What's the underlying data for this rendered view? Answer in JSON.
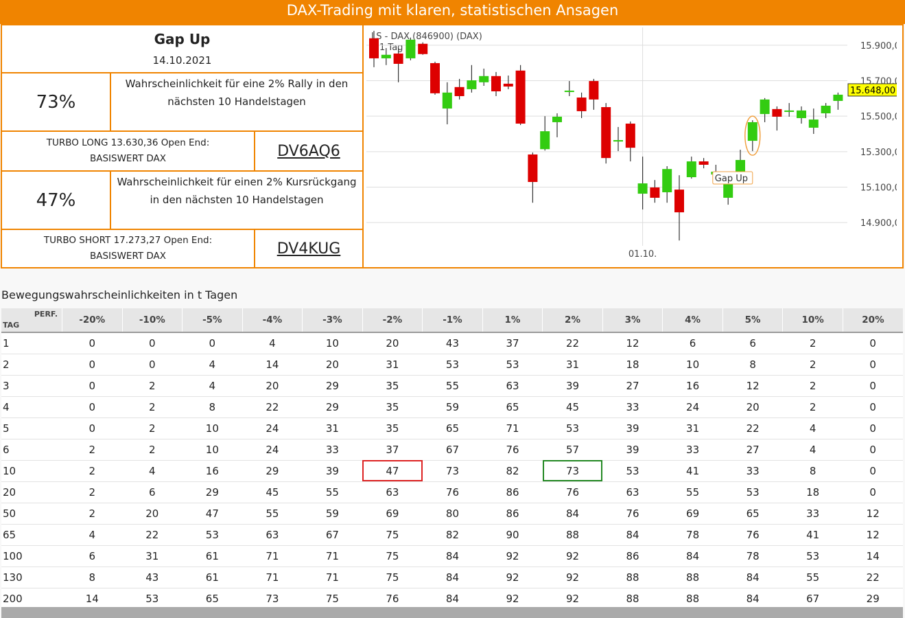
{
  "header": {
    "title": "DAX-Trading mit klaren, statistischen Ansagen"
  },
  "signal": {
    "title": "Gap Up",
    "date": "14.10.2021"
  },
  "long": {
    "probability": "73%",
    "text": "Wahrscheinlichkeit für eine 2% Rally in den nächsten 10 Handelstagen",
    "product": "TURBO LONG 13.630,36 Open End:",
    "underlying": "BASISWERT DAX",
    "code": "DV6AQ6"
  },
  "short": {
    "probability": "47%",
    "text": "Wahrscheinlichkeit für einen 2% Kursrückgang in den nächsten 10 Handelstagen",
    "product": "TURBO SHORT 17.273,27 Open End:",
    "underlying": "BASISWERT DAX",
    "code": "DV4KUG"
  },
  "chart_data": {
    "type": "candlestick",
    "title": "LS - DAX (846900) (DAX)",
    "interval": "1 Tag",
    "annotation": "Gap Up",
    "categories": [
      null,
      null,
      null,
      null,
      null,
      null,
      null,
      null,
      null,
      null,
      null,
      null,
      null,
      null,
      null,
      null,
      null,
      null,
      null,
      null,
      null,
      null,
      "01.10.",
      null,
      null,
      null,
      null,
      null,
      null,
      null,
      null,
      null,
      null,
      null,
      null,
      null,
      null,
      null,
      null
    ],
    "open": [
      15939,
      15826,
      15853,
      15826,
      15908,
      15799,
      15543,
      15664,
      15652,
      15691,
      15726,
      15683,
      15757,
      15284,
      15314,
      15466,
      15636,
      15605,
      15698,
      15551,
      15357,
      15458,
      15063,
      15098,
      15071,
      15086,
      15156,
      15245,
      15171,
      15040,
      15183,
      15361,
      15512,
      15540,
      15524,
      15489,
      15435,
      15516,
      15586
    ],
    "high": [
      15981,
      15884,
      15884,
      15943,
      15916,
      15807,
      15691,
      15710,
      15788,
      15768,
      15749,
      15729,
      15788,
      15295,
      15500,
      15516,
      15698,
      15633,
      15710,
      15574,
      15439,
      15470,
      15272,
      15140,
      15218,
      15167,
      15272,
      15264,
      15226,
      15187,
      15311,
      15477,
      15602,
      15555,
      15574,
      15555,
      15543,
      15574,
      15633
    ],
    "low": [
      15776,
      15788,
      15691,
      15815,
      15846,
      15621,
      15454,
      15594,
      15633,
      15671,
      15613,
      15652,
      15450,
      15012,
      15306,
      15381,
      15613,
      15489,
      15536,
      15233,
      15303,
      15245,
      14974,
      15012,
      15012,
      14799,
      15148,
      15206,
      15156,
      15001,
      15175,
      15303,
      15466,
      15419,
      15497,
      15458,
      15400,
      15489,
      15536
    ],
    "close": [
      15826,
      15846,
      15795,
      15931,
      15850,
      15629,
      15633,
      15613,
      15702,
      15726,
      15640,
      15667,
      15458,
      15129,
      15415,
      15497,
      15644,
      15528,
      15594,
      15264,
      15365,
      15322,
      15121,
      15040,
      15202,
      14958,
      15245,
      15226,
      15187,
      15136,
      15253,
      15466,
      15594,
      15497,
      15532,
      15532,
      15481,
      15559,
      15621
    ],
    "up_color": "#33cc11",
    "down_color": "#dd0000",
    "ylim": [
      14800,
      16000
    ],
    "yticks": [
      {
        "value": 14900,
        "label": "14.900,00"
      },
      {
        "value": 15100,
        "label": "15.100,00"
      },
      {
        "value": 15300,
        "label": "15.300,00"
      },
      {
        "value": 15500,
        "label": "15.500,00"
      },
      {
        "value": 15700,
        "label": "15.700,00"
      },
      {
        "value": 15900,
        "label": "15.900,00"
      }
    ],
    "last_price": {
      "value": 15648,
      "label": "15.648,00"
    },
    "grid": true
  },
  "table": {
    "title": "Bewegungswahrscheinlichkeiten in t Tagen",
    "corner": [
      "PERF.",
      "TAG"
    ],
    "columns": [
      "-20%",
      "-10%",
      "-5%",
      "-4%",
      "-3%",
      "-2%",
      "-1%",
      "1%",
      "2%",
      "3%",
      "4%",
      "5%",
      "10%",
      "20%"
    ],
    "rows": [
      [
        1,
        0,
        0,
        0,
        4,
        10,
        20,
        43,
        37,
        22,
        12,
        6,
        6,
        2,
        0
      ],
      [
        2,
        0,
        0,
        4,
        14,
        20,
        31,
        53,
        53,
        31,
        18,
        10,
        8,
        2,
        0
      ],
      [
        3,
        0,
        2,
        4,
        20,
        29,
        35,
        55,
        63,
        39,
        27,
        16,
        12,
        2,
        0
      ],
      [
        4,
        0,
        2,
        8,
        22,
        29,
        35,
        59,
        65,
        45,
        33,
        24,
        20,
        2,
        0
      ],
      [
        5,
        0,
        2,
        10,
        24,
        31,
        35,
        65,
        71,
        53,
        39,
        31,
        22,
        4,
        0
      ],
      [
        6,
        2,
        2,
        10,
        24,
        33,
        37,
        67,
        76,
        57,
        39,
        33,
        27,
        4,
        0
      ],
      [
        10,
        2,
        4,
        16,
        29,
        39,
        47,
        73,
        82,
        73,
        53,
        41,
        33,
        8,
        0
      ],
      [
        20,
        2,
        6,
        29,
        45,
        55,
        63,
        76,
        86,
        76,
        63,
        55,
        53,
        18,
        0
      ],
      [
        50,
        2,
        20,
        47,
        55,
        59,
        69,
        80,
        86,
        84,
        76,
        69,
        65,
        33,
        12
      ],
      [
        65,
        4,
        22,
        53,
        63,
        67,
        75,
        82,
        90,
        88,
        84,
        78,
        76,
        41,
        12
      ],
      [
        100,
        6,
        31,
        61,
        71,
        71,
        75,
        84,
        92,
        92,
        86,
        84,
        78,
        53,
        14
      ],
      [
        130,
        8,
        43,
        61,
        71,
        71,
        75,
        84,
        92,
        92,
        88,
        88,
        84,
        55,
        22
      ],
      [
        200,
        14,
        53,
        65,
        73,
        75,
        76,
        84,
        92,
        92,
        88,
        88,
        84,
        67,
        29
      ]
    ],
    "highlights": [
      {
        "row": 6,
        "col": 6,
        "color": "#dd2222"
      },
      {
        "row": 6,
        "col": 9,
        "color": "#228822"
      }
    ]
  }
}
